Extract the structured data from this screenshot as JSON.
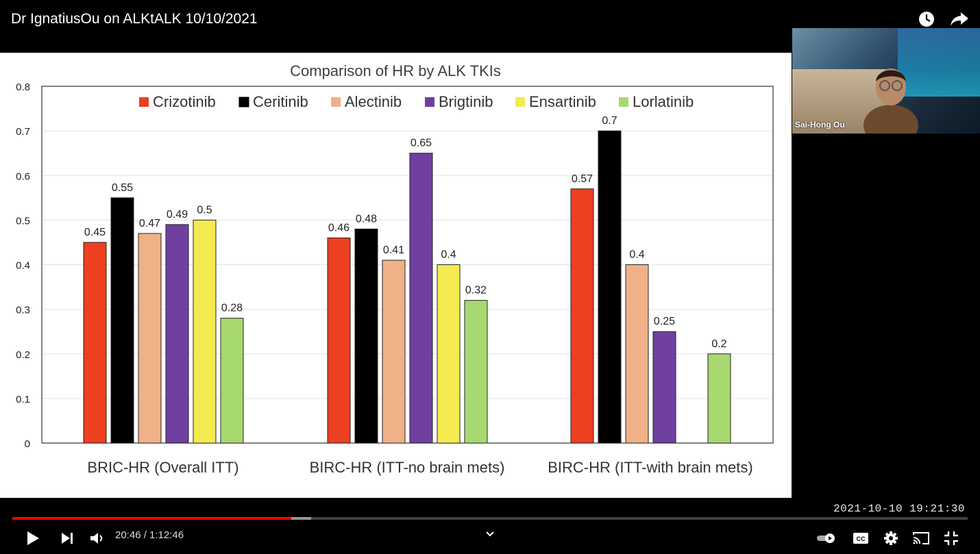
{
  "video": {
    "title": "Dr IgnatiusOu on ALKtALK 10/10/2021",
    "current_time": "20:46 / 1:12:46",
    "played_fraction": 0.2918,
    "buffered_fraction": 0.3127,
    "overlay_timestamp": "2021-10-10  19:21:30"
  },
  "webcam": {
    "name": "Sai-Hong Ou"
  },
  "icons": {
    "watch_later": "clock-icon",
    "share": "share-arrow-icon",
    "play": "play-icon",
    "next": "skip-next-icon",
    "volume": "volume-icon",
    "chevron": "chevron-down-icon",
    "autoplay": "autoplay-toggle-icon",
    "captions": "cc-icon",
    "settings": "gear-icon",
    "cast": "cast-icon",
    "exit_fullscreen": "exit-fullscreen-icon"
  },
  "chart_data": {
    "type": "bar",
    "title": "Comparison of HR by ALK TKIs",
    "categories": [
      "BRIC-HR (Overall ITT)",
      "BIRC-HR (ITT-no brain mets)",
      "BIRC-HR (ITT-with brain mets)"
    ],
    "ylim": [
      0,
      0.8
    ],
    "yticks": [
      "0",
      "0.1",
      "0.2",
      "0.3",
      "0.4",
      "0.5",
      "0.6",
      "0.7",
      "0.8"
    ],
    "grid": true,
    "legend_position": "top",
    "series": [
      {
        "name": "Crizotinib",
        "color": "#ec4020",
        "values": [
          0.45,
          0.46,
          0.57
        ]
      },
      {
        "name": "Ceritinib",
        "color": "#000000",
        "values": [
          0.55,
          0.48,
          0.7
        ]
      },
      {
        "name": "Alectinib",
        "color": "#f0b088",
        "values": [
          0.47,
          0.41,
          0.4
        ]
      },
      {
        "name": "Brigtinib",
        "color": "#7040a0",
        "values": [
          0.49,
          0.65,
          0.25
        ]
      },
      {
        "name": "Ensartinib",
        "color": "#f4ea50",
        "values": [
          0.5,
          0.4,
          null
        ]
      },
      {
        "name": "Lorlatinib",
        "color": "#a8d870",
        "values": [
          0.28,
          0.32,
          0.2
        ]
      }
    ]
  }
}
